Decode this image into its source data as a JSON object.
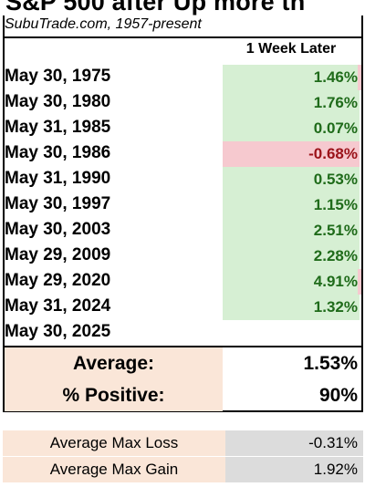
{
  "title": "S&P 500 after Up more th",
  "source": "SubuTrade.com, 1957-present",
  "column_header": "1 Week Later",
  "rows": [
    {
      "date": "May 30, 1975",
      "value": "1.46%",
      "sign": "pos",
      "edge": true
    },
    {
      "date": "May 30, 1980",
      "value": "1.76%",
      "sign": "pos",
      "edge": false
    },
    {
      "date": "May 31, 1985",
      "value": "0.07%",
      "sign": "pos",
      "edge": false
    },
    {
      "date": "May 30, 1986",
      "value": "-0.68%",
      "sign": "neg",
      "edge": false
    },
    {
      "date": "May 31, 1990",
      "value": "0.53%",
      "sign": "pos",
      "edge": false
    },
    {
      "date": "May 30, 1997",
      "value": "1.15%",
      "sign": "pos",
      "edge": false
    },
    {
      "date": "May 30, 2003",
      "value": "2.51%",
      "sign": "pos",
      "edge": false
    },
    {
      "date": "May 29, 2009",
      "value": "2.28%",
      "sign": "pos",
      "edge": false
    },
    {
      "date": "May 29, 2020",
      "value": "4.91%",
      "sign": "pos",
      "edge": true
    },
    {
      "date": "May 31, 2024",
      "value": "1.32%",
      "sign": "pos",
      "edge": false
    },
    {
      "date": "May 30, 2025",
      "value": "",
      "sign": "none",
      "edge": false
    }
  ],
  "summary": {
    "average_label": "Average:",
    "average_value": "1.53%",
    "positive_label": "% Positive:",
    "positive_value": "90%"
  },
  "max_stats": {
    "loss_label": "Average Max Loss",
    "loss_value": "-0.31%",
    "gain_label": "Average Max Gain",
    "gain_value": "1.92%"
  },
  "colors": {
    "positive_fill": "#d6efd3",
    "positive_text": "#1f6b1a",
    "negative_fill": "#f6c9cf",
    "negative_text": "#9b1219",
    "label_fill": "#fae6d8",
    "gray_fill": "#dcdcdc"
  }
}
